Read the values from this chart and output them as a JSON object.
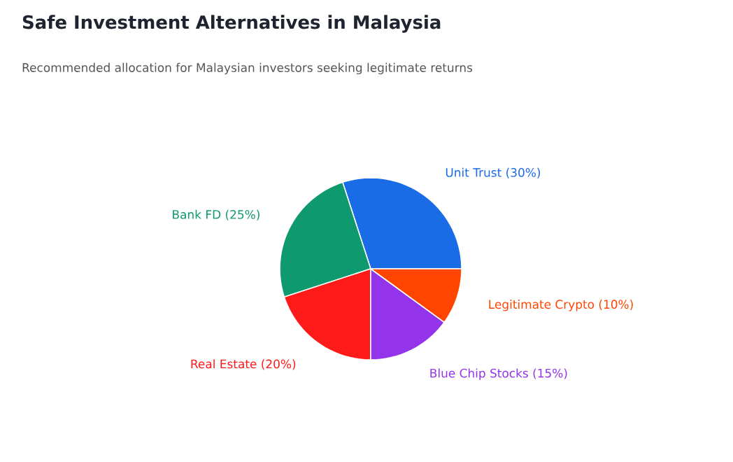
{
  "chart_data": {
    "type": "pie",
    "title": "Safe Investment Alternatives in Malaysia",
    "subtitle": "Recommended allocation for Malaysian investors seeking legitimate returns",
    "categories": [
      "Unit Trust (30%)",
      "Bank FD (25%)",
      "Real Estate (20%)",
      "Blue Chip Stocks (15%)",
      "Legitimate Crypto (10%)"
    ],
    "values": [
      30,
      25,
      20,
      15,
      10
    ],
    "colors": [
      "#1a6be6",
      "#0e9a6e",
      "#ff1a1a",
      "#9333ea",
      "#ff4500"
    ]
  }
}
